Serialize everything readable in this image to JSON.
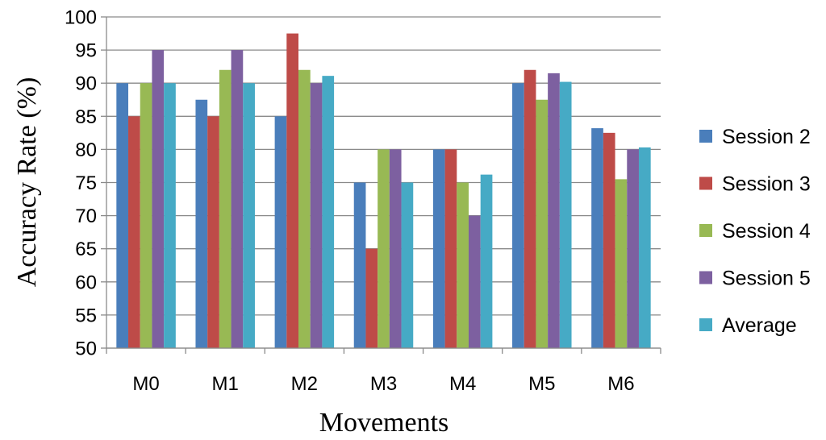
{
  "chart_data": {
    "type": "bar",
    "title": "",
    "xlabel": "Movements",
    "ylabel": "Accuracy Rate (%)",
    "ylim": [
      50,
      100
    ],
    "yticks": [
      50,
      55,
      60,
      65,
      70,
      75,
      80,
      85,
      90,
      95,
      100
    ],
    "grid": "horizontal",
    "legend": "right",
    "categories": [
      "M0",
      "M1",
      "M2",
      "M3",
      "M4",
      "M5",
      "M6"
    ],
    "series": [
      {
        "name": "Session 2",
        "color": "#4a7ebb",
        "values": [
          90,
          87.5,
          85,
          75,
          80,
          90,
          83.2
        ]
      },
      {
        "name": "Session 3",
        "color": "#be4b48",
        "values": [
          85,
          85,
          97.5,
          65,
          80,
          92,
          82.5
        ]
      },
      {
        "name": "Session 4",
        "color": "#98b954",
        "values": [
          90,
          92,
          92,
          80,
          75,
          87.5,
          75.5
        ]
      },
      {
        "name": "Session 5",
        "color": "#7d60a0",
        "values": [
          95,
          95,
          90,
          80,
          70,
          91.5,
          80
        ]
      },
      {
        "name": "Average",
        "color": "#46aac5",
        "values": [
          90,
          90,
          91.1,
          75,
          76.2,
          90.2,
          80.3
        ]
      }
    ]
  }
}
